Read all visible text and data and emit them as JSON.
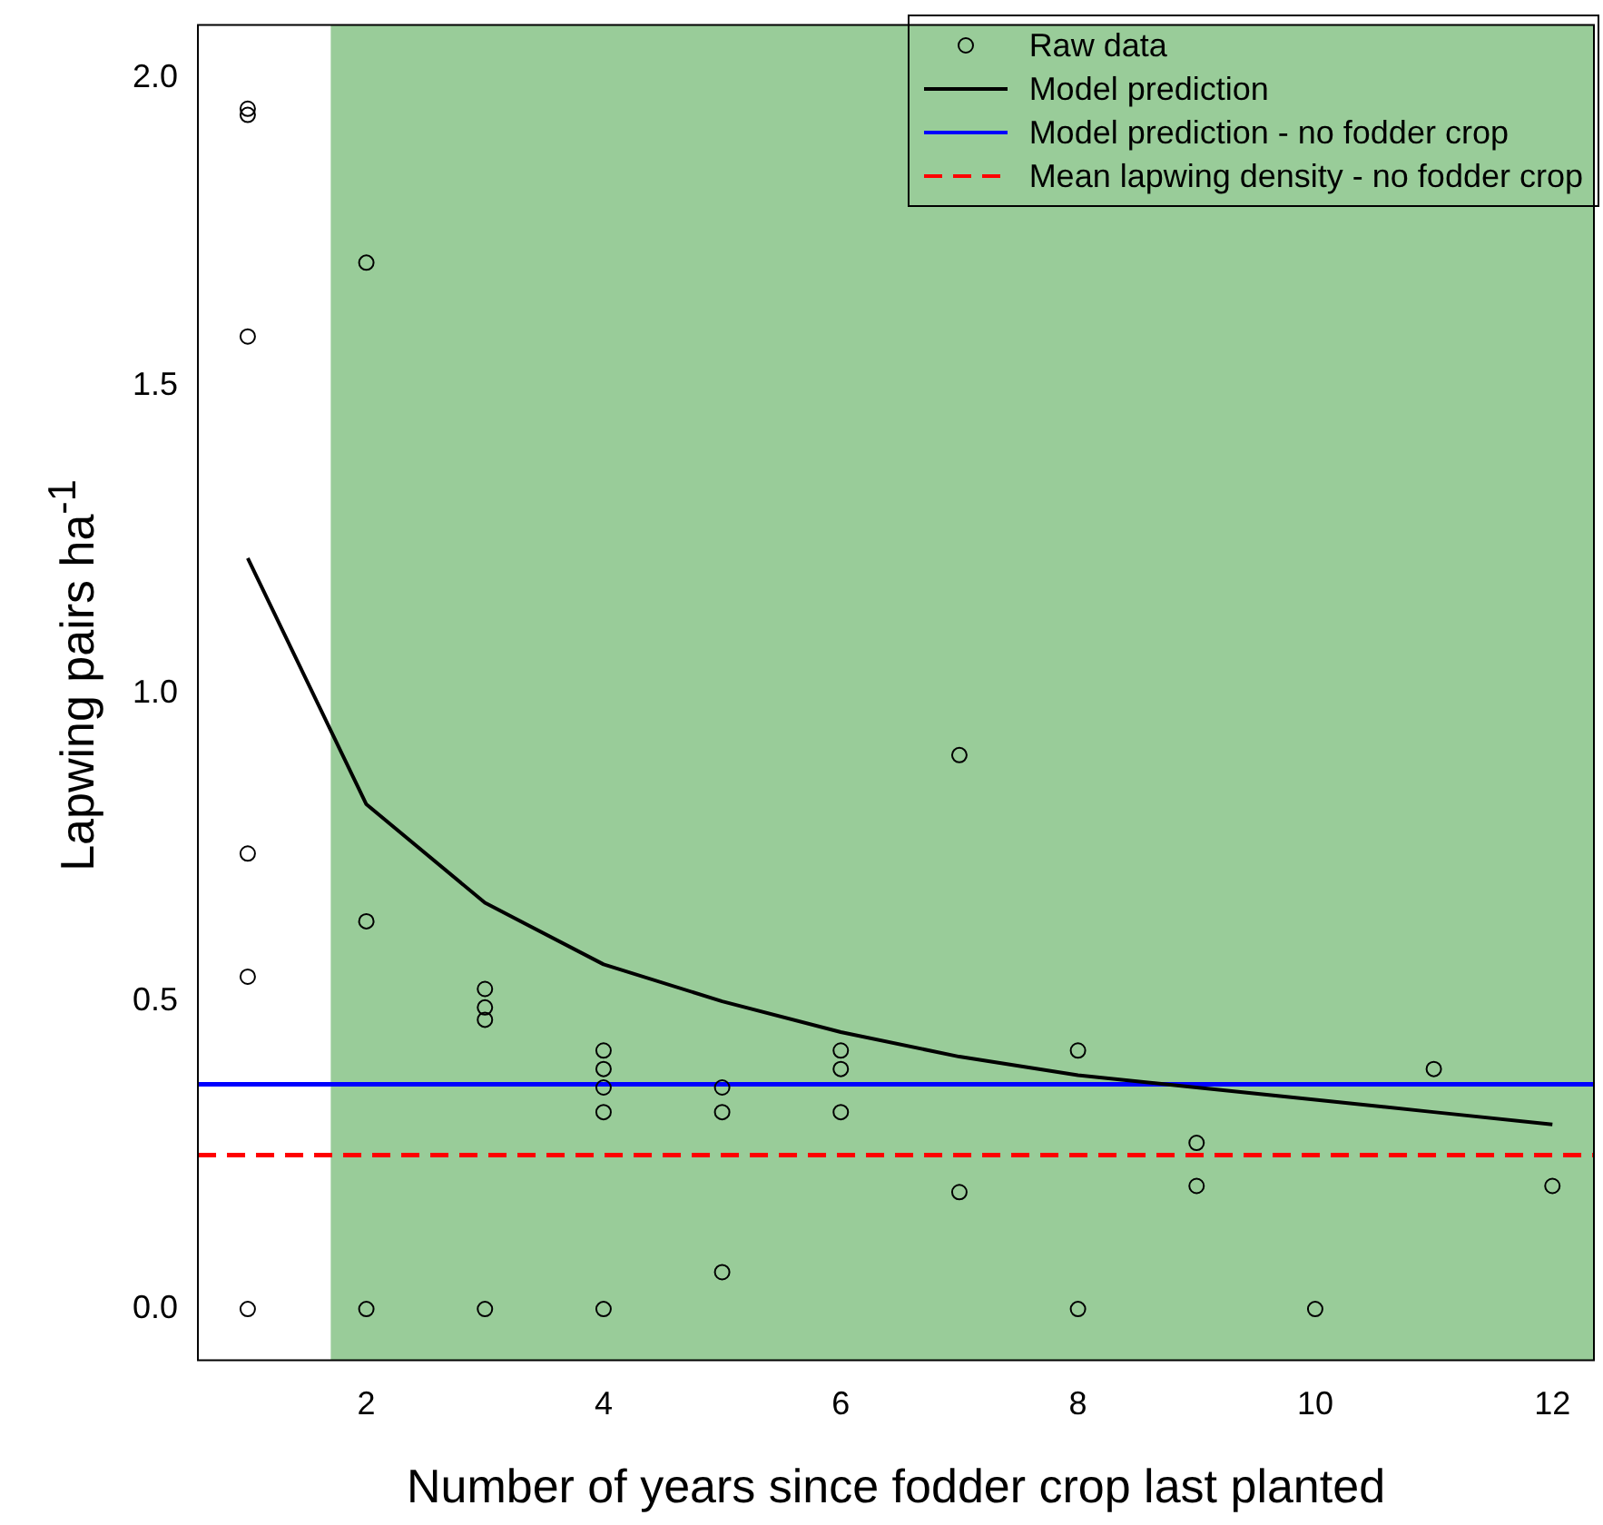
{
  "chart_data": {
    "type": "scatter",
    "xlabel": "Number of years since fodder crop last planted",
    "ylabel": "Lapwing pairs ha$^{-1}$",
    "xlim": [
      0.58,
      12.35
    ],
    "ylim": [
      -0.083,
      2.086
    ],
    "xticks": [
      2,
      4,
      6,
      8,
      10,
      12
    ],
    "yticks": [
      {
        "value": 0,
        "label": "0.0"
      },
      0.5,
      {
        "value": 1,
        "label": "1.0"
      },
      1.5,
      {
        "value": 2,
        "label": "2.0"
      }
    ],
    "grid": false,
    "legend": "top right",
    "series": [
      {
        "name": "Raw data",
        "marker": "circle",
        "color": "#000000",
        "x": [
          1,
          1,
          1,
          1,
          1,
          1,
          2,
          2,
          2,
          3,
          3,
          3,
          3,
          4,
          4,
          4,
          4,
          4,
          5,
          5,
          5,
          6,
          6,
          6,
          7,
          7,
          8,
          8,
          9,
          9,
          10,
          11,
          12
        ],
        "values": [
          1.95,
          1.94,
          1.58,
          0.74,
          0.54,
          0,
          1.7,
          0.63,
          0,
          0.52,
          0.49,
          0.47,
          0,
          0.42,
          0.39,
          0.36,
          0.32,
          0,
          0.36,
          0.32,
          0.06,
          0.42,
          0.39,
          0.32,
          0.9,
          0.19,
          0.42,
          0,
          0.27,
          0.2,
          0,
          0.39,
          0.2
        ]
      },
      {
        "name": "Model prediction",
        "type": "line",
        "color": "#000000",
        "x": [
          1,
          2,
          3,
          4,
          5,
          6,
          7,
          8,
          9,
          10,
          11,
          12
        ],
        "values": [
          1.22,
          0.82,
          0.66,
          0.56,
          0.5,
          0.45,
          0.41,
          0.38,
          0.36,
          0.34,
          0.32,
          0.3
        ]
      }
    ],
    "ref_lines": [
      {
        "axis": "y",
        "value": 0.365,
        "label": "Model prediction - no fodder crop",
        "color": "#0000ff",
        "line_style": "solid"
      },
      {
        "axis": "y",
        "value": 0.25,
        "label": "Mean lapwing density - no fodder crop",
        "color": "#ff0000",
        "line_style": "dashed"
      }
    ],
    "bands": [
      {
        "axis": "x",
        "from": 1.7,
        "to": 12.35,
        "color": "#99cc99"
      }
    ]
  }
}
